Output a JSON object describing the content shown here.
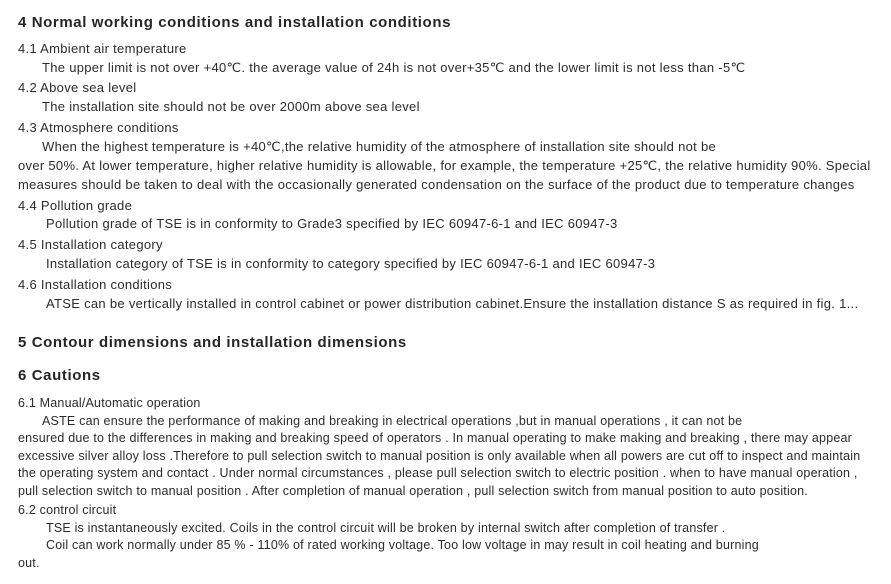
{
  "section4": {
    "heading": "4 Normal working conditions and installation conditions",
    "s41": {
      "title": "4.1 Ambient air temperature",
      "body": "The upper limit is not over +40℃. the average value of 24h is not over+35℃ and the lower limit is not less than -5℃"
    },
    "s42": {
      "title": "4.2 Above sea level",
      "body": "The installation site should not be over 2000m above sea level"
    },
    "s43": {
      "title": "4.3 Atmosphere conditions",
      "body1": "When the highest temperature is +40℃,the relative humidity of the atmosphere of installation site should not be",
      "body2": "over 50%. At lower temperature, higher relative humidity is allowable, for example, the temperature +25℃, the relative humidity 90%. Special measures should be taken to deal with the occasionally generated condensation on the surface of the product due to temperature changes"
    },
    "s44": {
      "title": "4.4 Pollution grade",
      "body": "Pollution grade of TSE is in conformity to Grade3 specified by IEC 60947-6-1 and IEC 60947-3"
    },
    "s45": {
      "title": "4.5 Installation category",
      "body": "Installation category of TSE is in conformity to category specified by  IEC 60947-6-1 and IEC 60947-3"
    },
    "s46": {
      "title": "4.6 Installation conditions",
      "body": "ATSE can be vertically installed in control cabinet or power distribution cabinet.Ensure the installation distance S as required in fig. 1..."
    }
  },
  "section5": {
    "heading": "5 Contour dimensions and installation dimensions"
  },
  "section6": {
    "heading": "6 Cautions",
    "s61": {
      "title": "6.1 Manual/Automatic operation",
      "body1": "ASTE can ensure the performance of making and breaking in electrical operations ,but in manual operations , it can not be",
      "body2": "ensured due to the differences in making and breaking speed of operators . In manual operating to make making and breaking , there may appear excessive silver alloy loss .Therefore to pull selection switch to manual position is only available when all powers are cut off to inspect and maintain the operating system and contact . Under normal circumstances , please pull selection switch to electric position . when to have manual operation , pull selection switch to manual position . After completion of manual operation , pull selection switch from manual position to auto position."
    },
    "s62": {
      "title": "6.2 control circuit",
      "body1": "TSE is instantaneously excited. Coils in the control circuit will be broken by internal switch after completion of transfer .",
      "body2": "Coil can work normally under 85 % - 110% of rated working voltage. Too low voltage in may result in coil heating and burning",
      "body3": "out."
    }
  }
}
